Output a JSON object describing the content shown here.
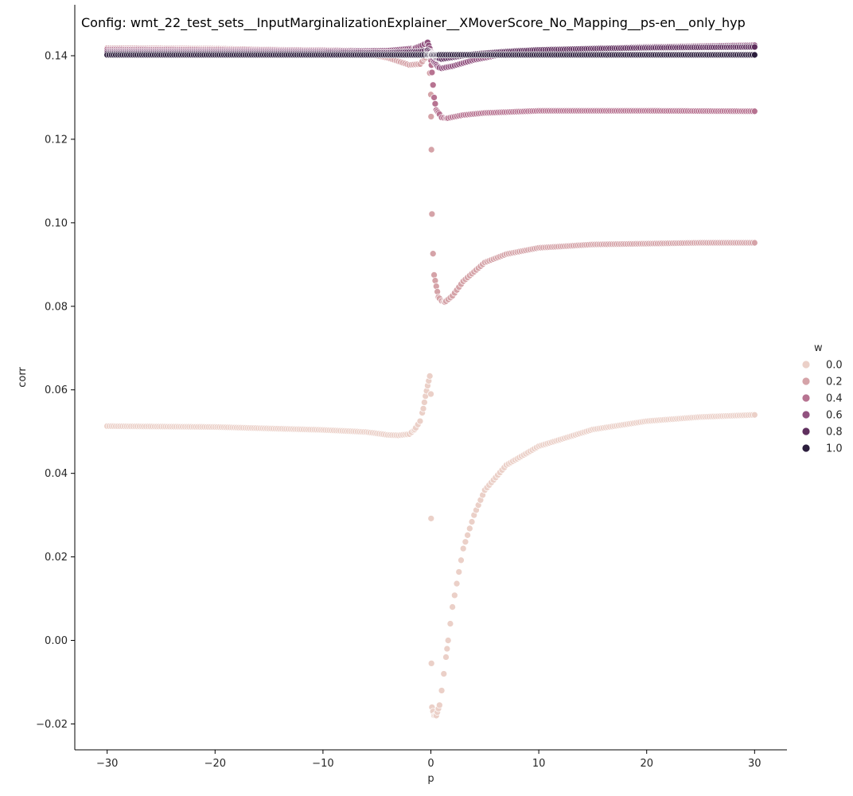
{
  "chart_data": {
    "type": "scatter",
    "title": "Config: wmt_22_test_sets__InputMarginalizationExplainer__XMoverScore_No_Mapping__ps-en__only_hyp",
    "xlabel": "p",
    "ylabel": "corr",
    "xlim": [
      -33,
      33
    ],
    "ylim": [
      -0.0262,
      0.1522
    ],
    "xticks": [
      -30,
      -20,
      -10,
      0,
      10,
      20,
      30
    ],
    "xtick_labels": [
      "−30",
      "−20",
      "−10",
      "0",
      "10",
      "20",
      "30"
    ],
    "yticks": [
      -0.02,
      0.0,
      0.02,
      0.04,
      0.06,
      0.08,
      0.1,
      0.12,
      0.14
    ],
    "ytick_labels": [
      "−0.02",
      "0.00",
      "0.02",
      "0.04",
      "0.06",
      "0.08",
      "0.10",
      "0.12",
      "0.14"
    ],
    "grid": false,
    "legend": {
      "title": "w",
      "placement": "right",
      "entries": [
        {
          "label": "0.0",
          "color": "#ebd0c8"
        },
        {
          "label": "0.2",
          "color": "#d5a3a8"
        },
        {
          "label": "0.4",
          "color": "#b77391"
        },
        {
          "label": "0.6",
          "color": "#91527f"
        },
        {
          "label": "0.8",
          "color": "#5f2f5e"
        },
        {
          "label": "1.0",
          "color": "#2c1e3d"
        }
      ]
    },
    "series": [
      {
        "name": "0.0",
        "color": "#ebd0c8",
        "points": [
          [
            -30,
            0.0513
          ],
          [
            -20,
            0.0511
          ],
          [
            -10,
            0.0504
          ],
          [
            -6,
            0.0499
          ],
          [
            -4,
            0.0492
          ],
          [
            -3,
            0.0491
          ],
          [
            -2,
            0.0494
          ],
          [
            -1.5,
            0.0505
          ],
          [
            -1,
            0.0525
          ],
          [
            -0.7,
            0.0555
          ],
          [
            -0.5,
            0.0585
          ],
          [
            -0.3,
            0.061
          ],
          [
            -0.1,
            0.0633
          ],
          [
            0,
            0.059
          ],
          [
            0.02,
            0.0292
          ],
          [
            0.05,
            -0.0055
          ],
          [
            0.1,
            -0.016
          ],
          [
            0.3,
            -0.018
          ],
          [
            0.5,
            -0.018
          ],
          [
            0.8,
            -0.0155
          ],
          [
            1,
            -0.012
          ],
          [
            1.5,
            -0.002
          ],
          [
            2,
            0.008
          ],
          [
            3,
            0.022
          ],
          [
            4,
            0.03
          ],
          [
            5,
            0.036
          ],
          [
            7,
            0.042
          ],
          [
            10,
            0.0465
          ],
          [
            15,
            0.0505
          ],
          [
            20,
            0.0525
          ],
          [
            25,
            0.0535
          ],
          [
            30,
            0.054
          ]
        ]
      },
      {
        "name": "0.2",
        "color": "#d5a3a8",
        "points": [
          [
            -30,
            0.1418
          ],
          [
            -20,
            0.1417
          ],
          [
            -10,
            0.1413
          ],
          [
            -6,
            0.1405
          ],
          [
            -4,
            0.1395
          ],
          [
            -2,
            0.1378
          ],
          [
            -1,
            0.138
          ],
          [
            -0.5,
            0.1395
          ],
          [
            -0.2,
            0.141
          ],
          [
            0,
            0.1307
          ],
          [
            0.05,
            0.1175
          ],
          [
            0.1,
            0.1021
          ],
          [
            0.2,
            0.0926
          ],
          [
            0.3,
            0.0875
          ],
          [
            0.5,
            0.0848
          ],
          [
            0.7,
            0.0822
          ],
          [
            1,
            0.0813
          ],
          [
            1.3,
            0.081
          ],
          [
            2,
            0.0825
          ],
          [
            3,
            0.086
          ],
          [
            5,
            0.0905
          ],
          [
            7,
            0.0925
          ],
          [
            10,
            0.094
          ],
          [
            15,
            0.0948
          ],
          [
            20,
            0.095
          ],
          [
            25,
            0.0952
          ],
          [
            30,
            0.0952
          ]
        ]
      },
      {
        "name": "0.4",
        "color": "#b77391",
        "points": [
          [
            -30,
            0.1415
          ],
          [
            -20,
            0.1414
          ],
          [
            -10,
            0.1413
          ],
          [
            -4,
            0.1412
          ],
          [
            -1,
            0.1415
          ],
          [
            -0.3,
            0.1425
          ],
          [
            0,
            0.1395
          ],
          [
            0.1,
            0.136
          ],
          [
            0.2,
            0.133
          ],
          [
            0.3,
            0.13
          ],
          [
            0.5,
            0.127
          ],
          [
            0.8,
            0.126
          ],
          [
            1,
            0.1252
          ],
          [
            1.5,
            0.125
          ],
          [
            2,
            0.1253
          ],
          [
            3,
            0.1258
          ],
          [
            5,
            0.1263
          ],
          [
            10,
            0.1268
          ],
          [
            20,
            0.1268
          ],
          [
            30,
            0.1267
          ]
        ]
      },
      {
        "name": "0.6",
        "color": "#91527f",
        "points": [
          [
            -30,
            0.141
          ],
          [
            -20,
            0.141
          ],
          [
            -10,
            0.141
          ],
          [
            -4,
            0.1412
          ],
          [
            -1.5,
            0.1418
          ],
          [
            -0.8,
            0.1425
          ],
          [
            -0.3,
            0.1432
          ],
          [
            0,
            0.141
          ],
          [
            0.3,
            0.1385
          ],
          [
            0.7,
            0.1372
          ],
          [
            1,
            0.137
          ],
          [
            2,
            0.1375
          ],
          [
            4,
            0.139
          ],
          [
            7,
            0.1405
          ],
          [
            10,
            0.1412
          ],
          [
            15,
            0.1418
          ],
          [
            20,
            0.1421
          ],
          [
            25,
            0.1423
          ],
          [
            30,
            0.1425
          ]
        ]
      },
      {
        "name": "0.8",
        "color": "#5f2f5e",
        "points": [
          [
            -30,
            0.1406
          ],
          [
            -20,
            0.1406
          ],
          [
            -10,
            0.1406
          ],
          [
            -4,
            0.1407
          ],
          [
            -1,
            0.141
          ],
          [
            -0.3,
            0.1413
          ],
          [
            0,
            0.1405
          ],
          [
            0.5,
            0.1395
          ],
          [
            1,
            0.1392
          ],
          [
            2,
            0.1396
          ],
          [
            4,
            0.1404
          ],
          [
            7,
            0.141
          ],
          [
            10,
            0.1414
          ],
          [
            15,
            0.1417
          ],
          [
            20,
            0.1419
          ],
          [
            25,
            0.142
          ],
          [
            30,
            0.1421
          ]
        ]
      },
      {
        "name": "1.0",
        "color": "#2c1e3d",
        "points": [
          [
            -30,
            0.1402
          ],
          [
            -20,
            0.1402
          ],
          [
            -10,
            0.1402
          ],
          [
            0,
            0.1402
          ],
          [
            10,
            0.1402
          ],
          [
            20,
            0.1402
          ],
          [
            30,
            0.1402
          ]
        ]
      }
    ]
  }
}
